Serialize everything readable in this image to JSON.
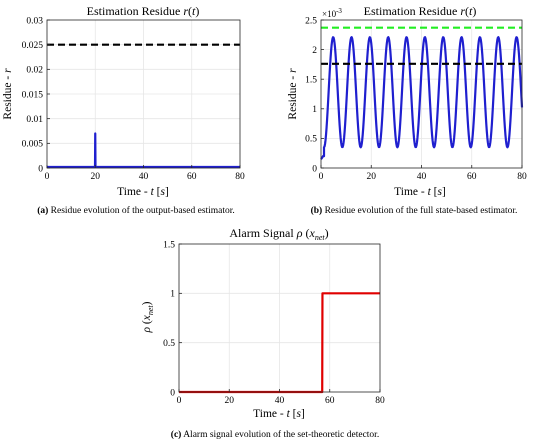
{
  "captions": {
    "a": {
      "tag": "(a)",
      "text": " Residue evolution of the output-based estimator."
    },
    "b": {
      "tag": "(b)",
      "text": " Residue evolution of the full state-based estimator."
    },
    "c": {
      "tag": "(c)",
      "text": " Alarm signal evolution of the set-theoretic detector."
    }
  },
  "colors": {
    "signal_blue": "#1f1fcf",
    "alarm_red": "#e00000",
    "threshold_black": "#000000",
    "threshold_green": "#22ee22",
    "grid": "#e6e6e6"
  },
  "chart_data": [
    {
      "id": "a",
      "type": "line",
      "title": "Estimation Residue r(t)",
      "xlabel": "Time - t [s]",
      "ylabel": "Residue - r",
      "xlim": [
        0,
        80
      ],
      "ylim": [
        0,
        0.03
      ],
      "xticks": [
        0,
        20,
        40,
        60,
        80
      ],
      "xtick_labels": [
        "0",
        "20",
        "40",
        "60",
        "80"
      ],
      "yticks": [
        0,
        0.005,
        0.01,
        0.015,
        0.02,
        0.025,
        0.03
      ],
      "ytick_labels": [
        "0",
        "0.005",
        "0.01",
        "0.015",
        "0.02",
        "0.025",
        "0.03"
      ],
      "grid": true,
      "series": [
        {
          "style": "solid",
          "color": "#1f1fcf",
          "x": [
            0,
            19.6,
            19.9,
            20.0,
            20.1,
            20.4,
            80
          ],
          "y": [
            0.0002,
            0.0002,
            0.0002,
            0.007,
            0.0002,
            0.0002,
            0.0002
          ]
        },
        {
          "style": "dashed",
          "color": "#000000",
          "x": [
            0,
            80
          ],
          "y": [
            0.025,
            0.025
          ]
        }
      ]
    },
    {
      "id": "b",
      "type": "line",
      "title": "Estimation Residue r(t)",
      "xlabel": "Time - t [s]",
      "ylabel": "Residue - r",
      "xlim": [
        0,
        80
      ],
      "ylim": [
        0,
        0.0025
      ],
      "exponent_label": "×10⁻³",
      "xticks": [
        0,
        20,
        40,
        60,
        80
      ],
      "xtick_labels": [
        "0",
        "20",
        "40",
        "60",
        "80"
      ],
      "yticks": [
        0,
        0.0005,
        0.001,
        0.0015,
        0.002,
        0.0025
      ],
      "ytick_labels": [
        "0",
        "0.5",
        "1",
        "1.5",
        "2",
        "2.5"
      ],
      "grid": true,
      "oscillation": {
        "mean": 0.00128,
        "amplitude": 0.00093,
        "period": 7.3,
        "start": 1.2
      },
      "series": [
        {
          "style": "solid",
          "color": "#1f1fcf",
          "x": [],
          "y": []
        },
        {
          "style": "dashed",
          "color": "#22ee22",
          "x": [
            0,
            80
          ],
          "y": [
            0.00237,
            0.00237
          ]
        },
        {
          "style": "dashed",
          "color": "#000000",
          "x": [
            0,
            80
          ],
          "y": [
            0.00176,
            0.00176
          ]
        }
      ]
    },
    {
      "id": "c",
      "type": "line",
      "title": "Alarm Signal ρ(x_net)",
      "xlabel": "Time - t [s]",
      "ylabel": "ρ(x_net)",
      "xlim": [
        0,
        80
      ],
      "ylim": [
        0,
        1.5
      ],
      "xticks": [
        0,
        20,
        40,
        60,
        80
      ],
      "xtick_labels": [
        "0",
        "20",
        "40",
        "60",
        "80"
      ],
      "yticks": [
        0,
        0.5,
        1,
        1.5
      ],
      "ytick_labels": [
        "0",
        "0.5",
        "1",
        "1.5"
      ],
      "grid": true,
      "series": [
        {
          "style": "solid",
          "color": "#e00000",
          "x": [
            0,
            57,
            57.1,
            80
          ],
          "y": [
            0,
            0,
            1,
            1
          ]
        }
      ]
    }
  ]
}
